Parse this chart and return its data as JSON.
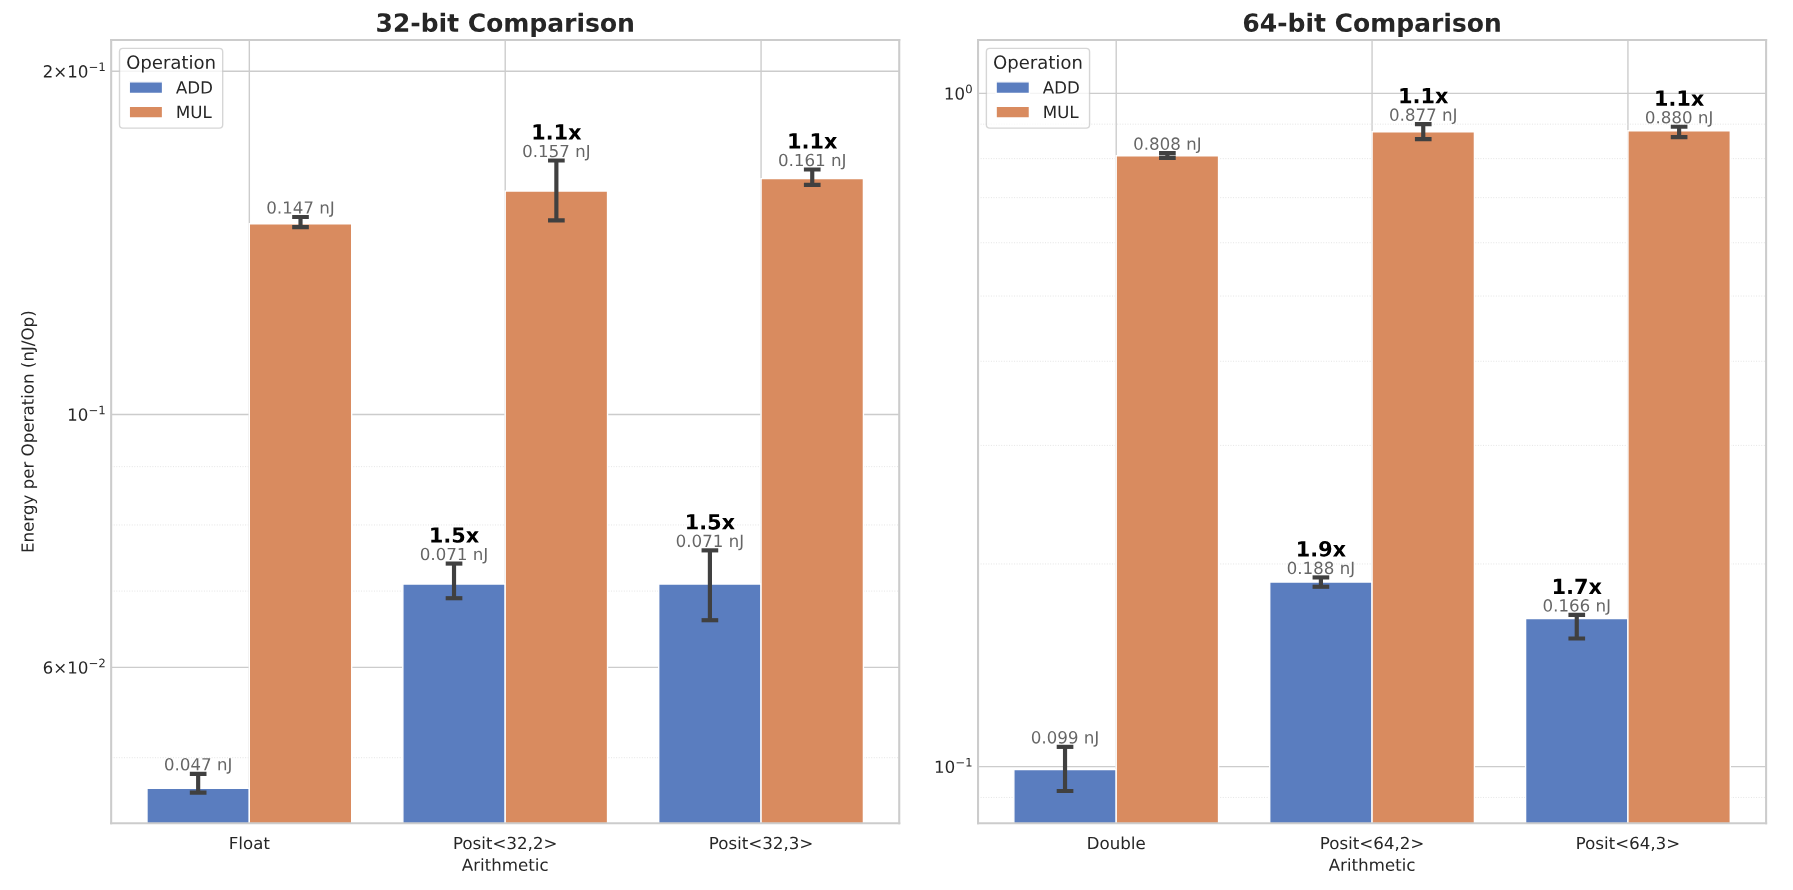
{
  "chart_data": [
    {
      "type": "bar",
      "title": "32-bit Comparison",
      "xlabel": "Arithmetic",
      "ylabel": "Energy per Operation (nJ/Op)",
      "legend_title": "Operation",
      "legend": "top left",
      "grid": true,
      "log": "y",
      "categories": [
        "Float",
        "Posit<32,2>",
        "Posit<32,3>"
      ],
      "ylim": [
        0.0438,
        0.213
      ],
      "yticks": [
        {
          "value": 0.06,
          "label": "6×10$^{−2}$"
        },
        {
          "value": 0.1,
          "label": "10$^{−1}$"
        },
        {
          "value": 0.2,
          "label": "2×10$^{−1}$"
        }
      ],
      "series": [
        {
          "name": "ADD",
          "color": "#5a7dbf",
          "values": [
            0.047,
            0.071,
            0.071
          ],
          "errors": [
            [
              0.0466,
              0.0484
            ],
            [
              0.069,
              0.074
            ],
            [
              0.066,
              0.076
            ]
          ],
          "value_labels": [
            "0.047 nJ",
            "0.071 nJ",
            "0.071 nJ"
          ]
        },
        {
          "name": "MUL",
          "color": "#d98b5f",
          "values": [
            0.147,
            0.157,
            0.161
          ],
          "errors": [
            [
              0.146,
              0.149
            ],
            [
              0.148,
              0.167
            ],
            [
              0.159,
              0.164
            ]
          ],
          "value_labels": [
            "0.147 nJ",
            "0.157 nJ",
            "0.161 nJ"
          ]
        }
      ],
      "annotations": [
        {
          "text": "1.5x",
          "x": "Posit<32,2>",
          "y": 0.071
        },
        {
          "text": "1.5x",
          "x": "Posit<32,3>",
          "y": 0.071
        },
        {
          "text": "1.1x",
          "x": "Posit<32,2>",
          "y": 0.157
        },
        {
          "text": "1.1x",
          "x": "Posit<32,3>",
          "y": 0.161
        }
      ]
    },
    {
      "type": "bar",
      "title": "64-bit Comparison",
      "xlabel": "Arithmetic",
      "legend_title": "Operation",
      "legend": "top left",
      "grid": true,
      "log": "y",
      "categories": [
        "Double",
        "Posit<64,2>",
        "Posit<64,3>"
      ],
      "ylim": [
        0.0824,
        1.2
      ],
      "yticks": [
        {
          "value": 0.1,
          "label": "10$^{−1}$"
        },
        {
          "value": 1,
          "label": "10$^{0}$"
        }
      ],
      "series": [
        {
          "name": "ADD",
          "color": "#5a7dbf",
          "values": [
            0.099,
            0.188,
            0.166
          ],
          "errors": [
            [
              0.092,
              0.107
            ],
            [
              0.185,
              0.191
            ],
            [
              0.155,
              0.168
            ]
          ],
          "value_labels": [
            "0.099 nJ",
            "0.188 nJ",
            "0.166 nJ"
          ]
        },
        {
          "name": "MUL",
          "color": "#d98b5f",
          "values": [
            0.808,
            0.877,
            0.88
          ],
          "errors": [
            [
              0.802,
              0.815
            ],
            [
              0.855,
              0.9
            ],
            [
              0.861,
              0.892
            ]
          ],
          "value_labels": [
            "0.808 nJ",
            "0.877 nJ",
            "0.880 nJ"
          ]
        }
      ],
      "annotations": [
        {
          "text": "1.9x",
          "x": "Posit<64,2>",
          "y": 0.188
        },
        {
          "text": "1.7x",
          "x": "Posit<64,3>",
          "y": 0.166
        },
        {
          "text": "1.1x",
          "x": "Posit<64,2>",
          "y": 0.877
        },
        {
          "text": "1.1x",
          "x": "Posit<64,3>",
          "y": 0.88
        }
      ]
    }
  ]
}
